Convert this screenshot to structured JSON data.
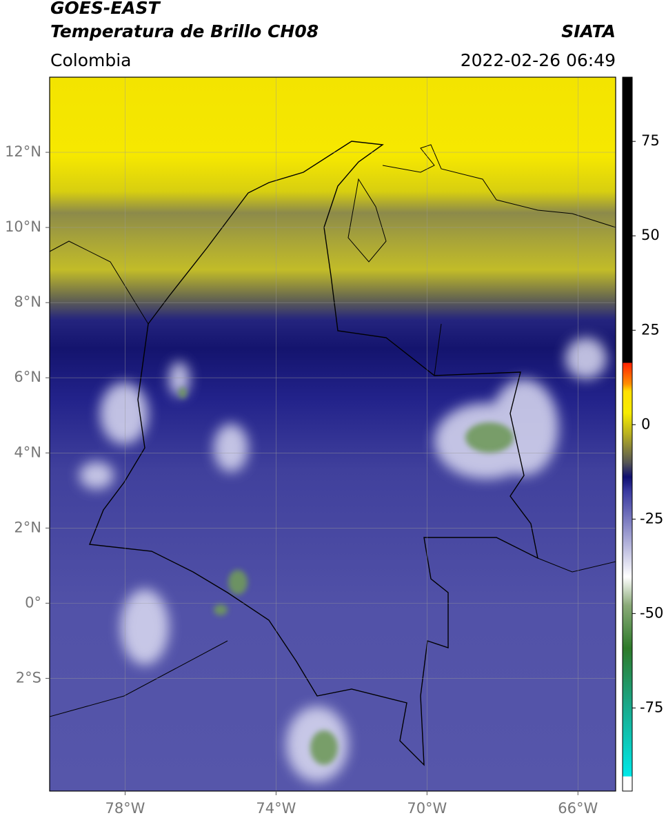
{
  "header": {
    "title": "GOES-EAST",
    "subtitle": "Temperatura de Brillo CH08",
    "region": "Colombia",
    "source": "SIATA",
    "datetime": "2022-02-26 06:49"
  },
  "map": {
    "xlim": [
      -80,
      -65
    ],
    "ylim": [
      -5,
      14
    ],
    "xticks": [
      {
        "value": -78,
        "label": "78°W"
      },
      {
        "value": -74,
        "label": "74°W"
      },
      {
        "value": -70,
        "label": "70°W"
      },
      {
        "value": -66,
        "label": "66°W"
      }
    ],
    "yticks": [
      {
        "value": 12,
        "label": "12°N"
      },
      {
        "value": 10,
        "label": "10°N"
      },
      {
        "value": 8,
        "label": "8°N"
      },
      {
        "value": 6,
        "label": "6°N"
      },
      {
        "value": 4,
        "label": "4°N"
      },
      {
        "value": 2,
        "label": "2°N"
      },
      {
        "value": 0,
        "label": "0°"
      },
      {
        "value": -2,
        "label": "2°S"
      }
    ],
    "grid": true
  },
  "colorbar": {
    "lim": [
      -97,
      92
    ],
    "ticks": [
      75,
      50,
      25,
      0,
      -25,
      -50,
      -75
    ]
  }
}
